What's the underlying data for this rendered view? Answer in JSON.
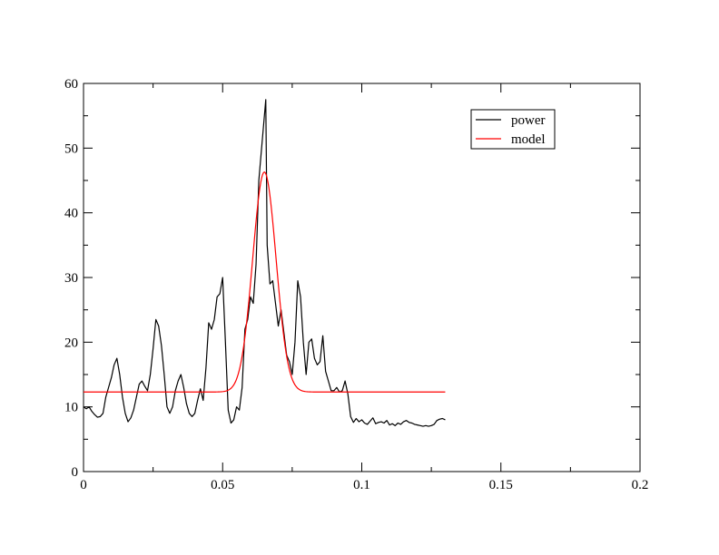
{
  "chart_data": {
    "type": "line",
    "title": "",
    "xlabel": "",
    "ylabel": "",
    "xlim": [
      0,
      0.2
    ],
    "ylim": [
      0,
      60
    ],
    "grid": false,
    "legend_placement": "top-right",
    "x_ticks": [
      0,
      0.05,
      0.1,
      0.15,
      0.2
    ],
    "x_tick_labels": [
      "0",
      "0.05",
      "0.1",
      "0.15",
      "0.2"
    ],
    "y_ticks": [
      0,
      10,
      20,
      30,
      40,
      50,
      60
    ],
    "y_tick_labels": [
      "0",
      "10",
      "20",
      "30",
      "40",
      "50",
      "60"
    ],
    "series": [
      {
        "name": "power",
        "color": "#000000",
        "x": [
          0,
          0.001,
          0.002,
          0.003,
          0.004,
          0.005,
          0.006,
          0.007,
          0.008,
          0.009,
          0.01,
          0.011,
          0.012,
          0.013,
          0.014,
          0.015,
          0.016,
          0.017,
          0.018,
          0.019,
          0.02,
          0.021,
          0.022,
          0.023,
          0.024,
          0.025,
          0.026,
          0.027,
          0.028,
          0.029,
          0.03,
          0.031,
          0.032,
          0.033,
          0.034,
          0.035,
          0.036,
          0.037,
          0.038,
          0.039,
          0.04,
          0.041,
          0.042,
          0.043,
          0.044,
          0.045,
          0.046,
          0.047,
          0.048,
          0.049,
          0.05,
          0.051,
          0.052,
          0.053,
          0.054,
          0.055,
          0.056,
          0.057,
          0.058,
          0.059,
          0.06,
          0.061,
          0.062,
          0.063,
          0.064,
          0.065,
          0.0655,
          0.066,
          0.067,
          0.068,
          0.069,
          0.07,
          0.071,
          0.072,
          0.073,
          0.074,
          0.075,
          0.076,
          0.077,
          0.078,
          0.079,
          0.08,
          0.081,
          0.082,
          0.083,
          0.084,
          0.085,
          0.086,
          0.087,
          0.088,
          0.089,
          0.09,
          0.091,
          0.092,
          0.093,
          0.094,
          0.095,
          0.096,
          0.097,
          0.098,
          0.099,
          0.1,
          0.101,
          0.102,
          0.103,
          0.104,
          0.105,
          0.106,
          0.107,
          0.108,
          0.109,
          0.11,
          0.111,
          0.112,
          0.113,
          0.114,
          0.115,
          0.116,
          0.117,
          0.118,
          0.119,
          0.12,
          0.121,
          0.122,
          0.123,
          0.124,
          0.125,
          0.126,
          0.127,
          0.128,
          0.129,
          0.13
        ],
        "y": [
          10,
          9.7,
          10,
          9.3,
          8.8,
          8.4,
          8.5,
          9,
          11.5,
          13,
          14.5,
          16.5,
          17.5,
          15,
          11.5,
          9,
          7.7,
          8.3,
          9.5,
          11.5,
          13.5,
          14,
          13.2,
          12.5,
          15,
          19,
          23.5,
          22.5,
          19.5,
          15,
          10,
          9,
          10,
          12.5,
          14,
          15,
          13,
          10.5,
          9,
          8.5,
          9,
          11,
          12.8,
          11,
          16,
          23,
          22,
          23.5,
          27,
          27.5,
          30,
          20,
          9.5,
          7.5,
          8,
          10,
          9.5,
          13,
          22,
          23.5,
          27,
          26,
          32,
          45,
          50,
          55,
          57.5,
          35,
          29,
          29.5,
          26,
          22.5,
          25,
          21.5,
          18,
          17,
          15,
          20,
          29.5,
          27,
          20,
          15,
          20,
          20.5,
          17.5,
          16.5,
          17,
          21,
          15.5,
          14,
          12.5,
          12.5,
          13,
          12.3,
          12.5,
          14,
          12,
          8.5,
          7.6,
          8.2,
          7.7,
          8,
          7.5,
          7.3,
          7.8,
          8.3,
          7.4,
          7.6,
          7.7,
          7.5,
          7.9,
          7.2,
          7.4,
          7.1,
          7.5,
          7.3,
          7.7,
          7.9,
          7.6,
          7.5,
          7.3,
          7.2,
          7.1,
          7.0,
          7.1,
          7.0,
          7.1,
          7.3,
          7.9,
          8.1,
          8.2,
          8.0
        ]
      },
      {
        "name": "model",
        "color": "#ff0000",
        "baseline": 12.3,
        "peak": 46.3,
        "center": 0.065,
        "sigma": 0.0042,
        "x_range": [
          0,
          0.13
        ]
      }
    ]
  }
}
